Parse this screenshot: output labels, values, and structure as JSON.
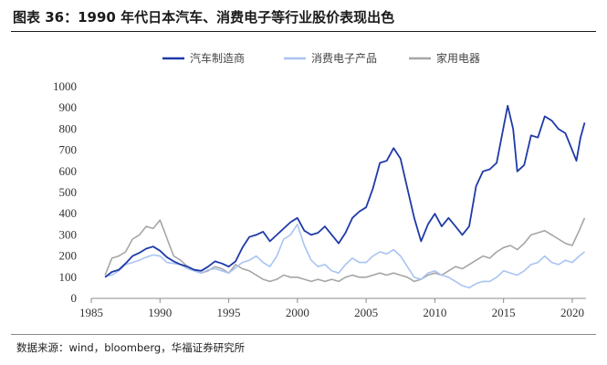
{
  "title": "图表 36：1990 年代日本汽车、消费电子等行业股价表现出色",
  "source": "数据来源：wind，bloomberg，华福证券研究所",
  "chart_data": {
    "type": "line",
    "title": "图表 36：1990 年代日本汽车、消费电子等行业股价表现出色",
    "xlabel": "",
    "ylabel": "",
    "xlim": [
      1985,
      2021
    ],
    "ylim": [
      0,
      1000
    ],
    "x_ticks": [
      "1985",
      "1990",
      "1995",
      "2000",
      "2005",
      "2010",
      "2015",
      "2020"
    ],
    "y_ticks": [
      "0",
      "100",
      "200",
      "300",
      "400",
      "500",
      "600",
      "700",
      "800",
      "900",
      "1000"
    ],
    "grid": false,
    "legend_position": "top-center",
    "series": [
      {
        "name": "汽车制造商",
        "color": "#1f3aa8",
        "points": [
          [
            1986.0,
            100
          ],
          [
            1986.5,
            125
          ],
          [
            1987.0,
            135
          ],
          [
            1987.5,
            165
          ],
          [
            1988.0,
            200
          ],
          [
            1988.5,
            215
          ],
          [
            1989.0,
            235
          ],
          [
            1989.5,
            245
          ],
          [
            1990.0,
            225
          ],
          [
            1990.5,
            195
          ],
          [
            1991.0,
            175
          ],
          [
            1991.5,
            160
          ],
          [
            1992.0,
            150
          ],
          [
            1992.5,
            135
          ],
          [
            1993.0,
            130
          ],
          [
            1993.5,
            150
          ],
          [
            1994.0,
            175
          ],
          [
            1994.5,
            165
          ],
          [
            1995.0,
            150
          ],
          [
            1995.5,
            175
          ],
          [
            1996.0,
            240
          ],
          [
            1996.5,
            290
          ],
          [
            1997.0,
            300
          ],
          [
            1997.5,
            315
          ],
          [
            1998.0,
            270
          ],
          [
            1998.5,
            300
          ],
          [
            1999.0,
            330
          ],
          [
            1999.5,
            360
          ],
          [
            2000.0,
            380
          ],
          [
            2000.5,
            320
          ],
          [
            2001.0,
            300
          ],
          [
            2001.5,
            310
          ],
          [
            2002.0,
            340
          ],
          [
            2002.5,
            300
          ],
          [
            2003.0,
            260
          ],
          [
            2003.5,
            310
          ],
          [
            2004.0,
            380
          ],
          [
            2004.5,
            410
          ],
          [
            2005.0,
            430
          ],
          [
            2005.5,
            520
          ],
          [
            2006.0,
            640
          ],
          [
            2006.5,
            650
          ],
          [
            2007.0,
            710
          ],
          [
            2007.5,
            660
          ],
          [
            2008.0,
            520
          ],
          [
            2008.5,
            380
          ],
          [
            2009.0,
            270
          ],
          [
            2009.5,
            350
          ],
          [
            2010.0,
            400
          ],
          [
            2010.5,
            340
          ],
          [
            2011.0,
            380
          ],
          [
            2011.5,
            340
          ],
          [
            2012.0,
            300
          ],
          [
            2012.5,
            340
          ],
          [
            2013.0,
            530
          ],
          [
            2013.5,
            600
          ],
          [
            2014.0,
            610
          ],
          [
            2014.5,
            640
          ],
          [
            2015.0,
            810
          ],
          [
            2015.3,
            910
          ],
          [
            2015.7,
            800
          ],
          [
            2016.0,
            600
          ],
          [
            2016.5,
            630
          ],
          [
            2017.0,
            770
          ],
          [
            2017.5,
            760
          ],
          [
            2018.0,
            860
          ],
          [
            2018.5,
            840
          ],
          [
            2019.0,
            800
          ],
          [
            2019.5,
            780
          ],
          [
            2020.0,
            700
          ],
          [
            2020.3,
            650
          ],
          [
            2020.6,
            760
          ],
          [
            2020.9,
            830
          ]
        ]
      },
      {
        "name": "消费电子产品",
        "color": "#a9c4f2",
        "points": [
          [
            1986.0,
            105
          ],
          [
            1986.5,
            110
          ],
          [
            1987.0,
            130
          ],
          [
            1987.5,
            160
          ],
          [
            1988.0,
            170
          ],
          [
            1988.5,
            180
          ],
          [
            1989.0,
            195
          ],
          [
            1989.5,
            205
          ],
          [
            1990.0,
            200
          ],
          [
            1990.5,
            170
          ],
          [
            1991.0,
            165
          ],
          [
            1991.5,
            160
          ],
          [
            1992.0,
            140
          ],
          [
            1992.5,
            130
          ],
          [
            1993.0,
            120
          ],
          [
            1993.5,
            135
          ],
          [
            1994.0,
            140
          ],
          [
            1994.5,
            130
          ],
          [
            1995.0,
            120
          ],
          [
            1995.5,
            145
          ],
          [
            1996.0,
            170
          ],
          [
            1996.5,
            180
          ],
          [
            1997.0,
            200
          ],
          [
            1997.5,
            170
          ],
          [
            1998.0,
            150
          ],
          [
            1998.5,
            200
          ],
          [
            1999.0,
            280
          ],
          [
            1999.5,
            300
          ],
          [
            2000.0,
            350
          ],
          [
            2000.5,
            250
          ],
          [
            2001.0,
            180
          ],
          [
            2001.5,
            150
          ],
          [
            2002.0,
            160
          ],
          [
            2002.5,
            130
          ],
          [
            2003.0,
            120
          ],
          [
            2003.5,
            160
          ],
          [
            2004.0,
            190
          ],
          [
            2004.5,
            170
          ],
          [
            2005.0,
            170
          ],
          [
            2005.5,
            200
          ],
          [
            2006.0,
            220
          ],
          [
            2006.5,
            210
          ],
          [
            2007.0,
            230
          ],
          [
            2007.5,
            200
          ],
          [
            2008.0,
            150
          ],
          [
            2008.5,
            100
          ],
          [
            2009.0,
            90
          ],
          [
            2009.5,
            120
          ],
          [
            2010.0,
            130
          ],
          [
            2010.5,
            110
          ],
          [
            2011.0,
            100
          ],
          [
            2011.5,
            80
          ],
          [
            2012.0,
            60
          ],
          [
            2012.5,
            50
          ],
          [
            2013.0,
            70
          ],
          [
            2013.5,
            80
          ],
          [
            2014.0,
            80
          ],
          [
            2014.5,
            100
          ],
          [
            2015.0,
            130
          ],
          [
            2015.5,
            120
          ],
          [
            2016.0,
            110
          ],
          [
            2016.5,
            130
          ],
          [
            2017.0,
            160
          ],
          [
            2017.5,
            170
          ],
          [
            2018.0,
            200
          ],
          [
            2018.5,
            170
          ],
          [
            2019.0,
            160
          ],
          [
            2019.5,
            180
          ],
          [
            2020.0,
            170
          ],
          [
            2020.5,
            200
          ],
          [
            2020.9,
            220
          ]
        ]
      },
      {
        "name": "家用电器",
        "color": "#a6a6a6",
        "points": [
          [
            1986.0,
            110
          ],
          [
            1986.5,
            190
          ],
          [
            1987.0,
            200
          ],
          [
            1987.5,
            220
          ],
          [
            1988.0,
            280
          ],
          [
            1988.5,
            300
          ],
          [
            1989.0,
            340
          ],
          [
            1989.5,
            330
          ],
          [
            1990.0,
            370
          ],
          [
            1990.3,
            320
          ],
          [
            1990.7,
            250
          ],
          [
            1991.0,
            200
          ],
          [
            1991.5,
            180
          ],
          [
            1992.0,
            150
          ],
          [
            1992.5,
            130
          ],
          [
            1993.0,
            120
          ],
          [
            1993.5,
            130
          ],
          [
            1994.0,
            150
          ],
          [
            1994.5,
            140
          ],
          [
            1995.0,
            120
          ],
          [
            1995.5,
            160
          ],
          [
            1996.0,
            140
          ],
          [
            1996.5,
            130
          ],
          [
            1997.0,
            110
          ],
          [
            1997.5,
            90
          ],
          [
            1998.0,
            80
          ],
          [
            1998.5,
            90
          ],
          [
            1999.0,
            110
          ],
          [
            1999.5,
            100
          ],
          [
            2000.0,
            100
          ],
          [
            2000.5,
            90
          ],
          [
            2001.0,
            80
          ],
          [
            2001.5,
            90
          ],
          [
            2002.0,
            80
          ],
          [
            2002.5,
            90
          ],
          [
            2003.0,
            80
          ],
          [
            2003.5,
            100
          ],
          [
            2004.0,
            110
          ],
          [
            2004.5,
            100
          ],
          [
            2005.0,
            100
          ],
          [
            2005.5,
            110
          ],
          [
            2006.0,
            120
          ],
          [
            2006.5,
            110
          ],
          [
            2007.0,
            120
          ],
          [
            2007.5,
            110
          ],
          [
            2008.0,
            100
          ],
          [
            2008.5,
            80
          ],
          [
            2009.0,
            90
          ],
          [
            2009.5,
            110
          ],
          [
            2010.0,
            120
          ],
          [
            2010.5,
            110
          ],
          [
            2011.0,
            130
          ],
          [
            2011.5,
            150
          ],
          [
            2012.0,
            140
          ],
          [
            2012.5,
            160
          ],
          [
            2013.0,
            180
          ],
          [
            2013.5,
            200
          ],
          [
            2014.0,
            190
          ],
          [
            2014.5,
            220
          ],
          [
            2015.0,
            240
          ],
          [
            2015.5,
            250
          ],
          [
            2016.0,
            230
          ],
          [
            2016.5,
            260
          ],
          [
            2017.0,
            300
          ],
          [
            2017.5,
            310
          ],
          [
            2018.0,
            320
          ],
          [
            2018.5,
            300
          ],
          [
            2019.0,
            280
          ],
          [
            2019.5,
            260
          ],
          [
            2020.0,
            250
          ],
          [
            2020.5,
            320
          ],
          [
            2020.9,
            380
          ]
        ]
      }
    ]
  }
}
